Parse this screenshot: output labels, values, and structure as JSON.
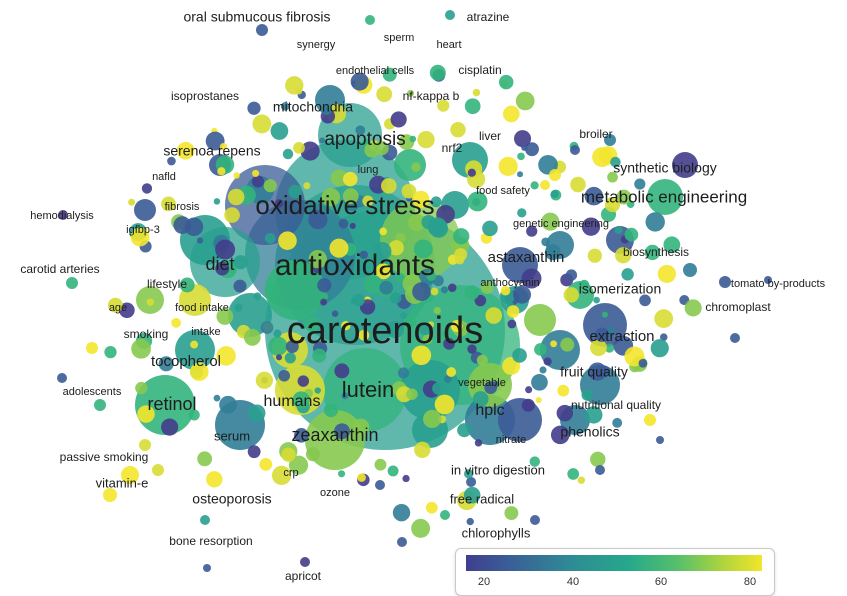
{
  "colors": {
    "c20": "#433d8b",
    "c30": "#3b5b96",
    "c40": "#317d97",
    "c50": "#29a08f",
    "c60": "#33b47c",
    "c70": "#86c94f",
    "c80": "#d8dd34",
    "c85": "#f3e52c"
  },
  "legend": {
    "ticks": [
      "20",
      "40",
      "60",
      "80"
    ]
  },
  "terms": [
    "carotenoids",
    "antioxidants",
    "oxidative stress",
    "lutein",
    "apoptosis",
    "diet",
    "retinol",
    "zeaxanthin",
    "humans",
    "hplc",
    "metabolic engineering",
    "astaxanthin",
    "isomerization",
    "extraction",
    "tocopherol",
    "fruit quality",
    "phenolics",
    "mitochondria",
    "synthetic biology",
    "serenoa repens",
    "oral submucous fibrosis",
    "atrazine",
    "synergy",
    "sperm",
    "heart",
    "endothelial cells",
    "cisplatin",
    "isoprostanes",
    "nf-kappa b",
    "liver",
    "broiler",
    "nrf2",
    "lung",
    "food safety",
    "nafld",
    "fibrosis",
    "hemodialysis",
    "igfbp-3",
    "genetic engineering",
    "biosynthesis",
    "carotid arteries",
    "lifestyle",
    "anthocyanin",
    "tomato by-products",
    "age",
    "food intake",
    "chromoplast",
    "smoking",
    "intake",
    "adolescents",
    "vegetable",
    "nutritional quality",
    "serum",
    "nitrate",
    "passive smoking",
    "in vitro digestion",
    "vitamin-e",
    "crp",
    "osteoporosis",
    "ozone",
    "free radical",
    "chlorophylls",
    "bone resorption",
    "apricot"
  ]
}
